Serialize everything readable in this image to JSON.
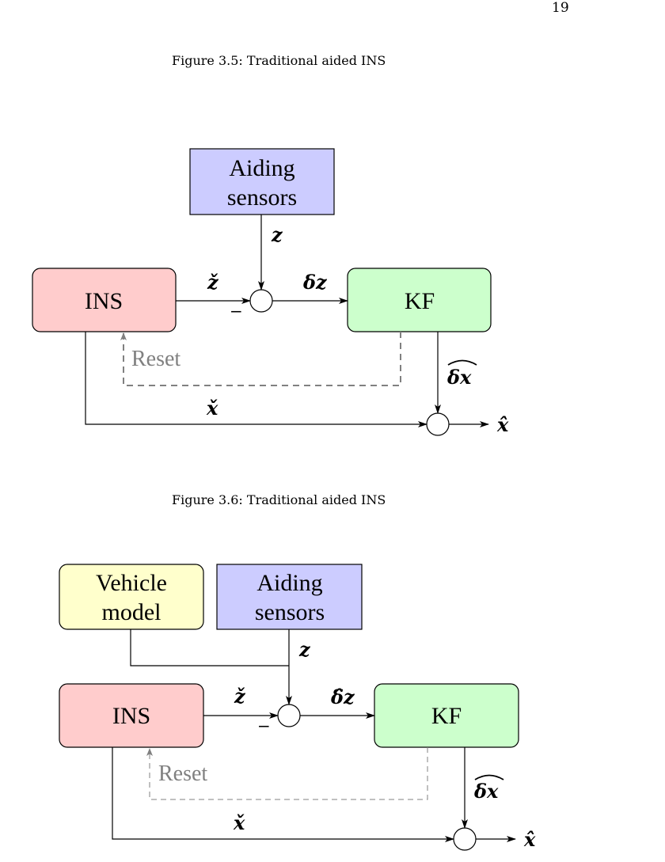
{
  "page": {
    "number": "19"
  },
  "figures": [
    {
      "caption": "Figure 3.5: Traditional aided INS",
      "blocks": {
        "aiding_line1": "Aiding",
        "aiding_line2": "sensors",
        "ins": "INS",
        "kf": "KF"
      },
      "symbols": {
        "z": "z",
        "z_check": "ž",
        "delta_z": "δz",
        "delta_x_hat": "δx",
        "x_check": "x̌",
        "x_hat": "x̂",
        "minus": "−"
      },
      "reset": "Reset",
      "colors": {
        "ins": "#ffcccc",
        "kf": "#ccffcc",
        "aiding": "#ccccff"
      }
    },
    {
      "caption": "Figure 3.6: Traditional aided INS",
      "blocks": {
        "vehicle_line1": "Vehicle",
        "vehicle_line2": "model",
        "aiding_line1": "Aiding",
        "aiding_line2": "sensors",
        "ins": "INS",
        "kf": "KF"
      },
      "symbols": {
        "z": "z",
        "z_check": "ž",
        "delta_z": "δ̂z",
        "delta_x_hat": "δx",
        "x_check": "x̌",
        "x_hat": "x̂",
        "minus": "−"
      },
      "reset": "Reset",
      "colors": {
        "ins": "#ffcccc",
        "kf": "#ccffcc",
        "aiding": "#ccccff",
        "vehicle": "#ffffcc"
      }
    }
  ]
}
